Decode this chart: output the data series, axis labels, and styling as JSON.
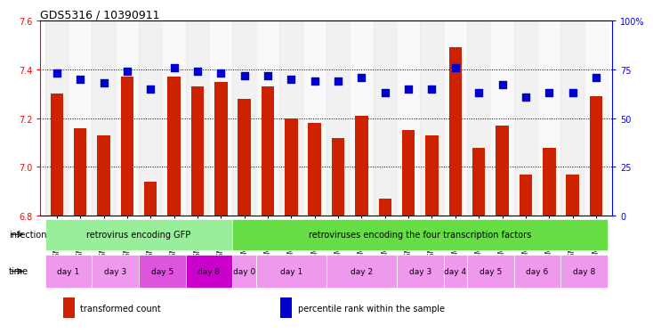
{
  "title": "GDS5316 / 10390911",
  "samples": [
    "GSM943810",
    "GSM943811",
    "GSM943812",
    "GSM943813",
    "GSM943814",
    "GSM943815",
    "GSM943816",
    "GSM943817",
    "GSM943794",
    "GSM943795",
    "GSM943796",
    "GSM943797",
    "GSM943798",
    "GSM943799",
    "GSM943800",
    "GSM943801",
    "GSM943802",
    "GSM943803",
    "GSM943804",
    "GSM943805",
    "GSM943806",
    "GSM943807",
    "GSM943808",
    "GSM943809"
  ],
  "transformed_count": [
    7.3,
    7.16,
    7.13,
    7.37,
    6.94,
    7.37,
    7.33,
    7.35,
    7.28,
    7.33,
    7.2,
    7.18,
    7.12,
    7.21,
    6.87,
    7.15,
    7.13,
    7.49,
    7.08,
    7.17,
    6.97,
    7.08,
    6.97,
    7.29
  ],
  "percentile_rank": [
    73,
    70,
    68,
    74,
    65,
    76,
    74,
    73,
    72,
    72,
    70,
    69,
    69,
    71,
    63,
    65,
    65,
    76,
    63,
    67,
    61,
    63,
    63,
    71
  ],
  "ylim_left": [
    6.8,
    7.6
  ],
  "ylim_right": [
    0,
    100
  ],
  "yticks_left": [
    6.8,
    7.0,
    7.2,
    7.4,
    7.6
  ],
  "yticks_right": [
    0,
    25,
    50,
    75,
    100
  ],
  "bar_color": "#cc2200",
  "dot_color": "#0000cc",
  "infection_groups": [
    {
      "label": "retrovirus encoding GFP",
      "start": 0,
      "end": 8,
      "color": "#99ee99"
    },
    {
      "label": "retroviruses encoding the four transcription factors",
      "start": 8,
      "end": 24,
      "color": "#66dd44"
    }
  ],
  "time_groups": [
    {
      "label": "day 1",
      "start": 0,
      "end": 2,
      "color": "#ee99ee"
    },
    {
      "label": "day 3",
      "start": 2,
      "end": 4,
      "color": "#ee99ee"
    },
    {
      "label": "day 5",
      "start": 4,
      "end": 6,
      "color": "#dd55dd"
    },
    {
      "label": "day 8",
      "start": 6,
      "end": 8,
      "color": "#cc00cc"
    },
    {
      "label": "day 0",
      "start": 8,
      "end": 9,
      "color": "#ee99ee"
    },
    {
      "label": "day 1",
      "start": 9,
      "end": 12,
      "color": "#ee99ee"
    },
    {
      "label": "day 2",
      "start": 12,
      "end": 15,
      "color": "#ee99ee"
    },
    {
      "label": "day 3",
      "start": 15,
      "end": 17,
      "color": "#ee99ee"
    },
    {
      "label": "day 4",
      "start": 17,
      "end": 18,
      "color": "#ee99ee"
    },
    {
      "label": "day 5",
      "start": 18,
      "end": 20,
      "color": "#ee99ee"
    },
    {
      "label": "day 6",
      "start": 20,
      "end": 22,
      "color": "#ee99ee"
    },
    {
      "label": "day 8",
      "start": 22,
      "end": 24,
      "color": "#ee99ee"
    }
  ],
  "xlabel_infection": "infection",
  "xlabel_time": "time",
  "legend_items": [
    {
      "label": "transformed count",
      "color": "#cc2200"
    },
    {
      "label": "percentile rank within the sample",
      "color": "#0000cc"
    }
  ],
  "bar_bottom": 6.8,
  "bar_width": 0.55,
  "dot_size": 40,
  "background_color": "#ffffff",
  "grid_dotted_values": [
    7.0,
    7.2,
    7.4
  ],
  "col_bg_even": "#e8e8e8",
  "col_bg_odd": "#f5f5f5"
}
